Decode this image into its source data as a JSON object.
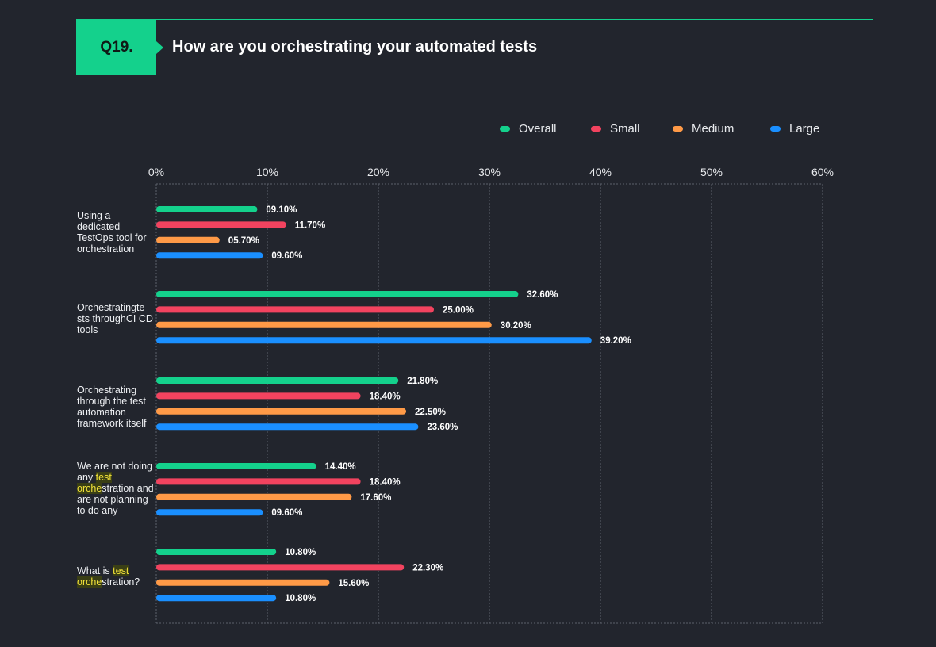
{
  "header": {
    "question_number": "Q19.",
    "title": "How are you orchestrating your automated tests"
  },
  "legend": [
    {
      "name": "Overall",
      "color": "#14d18c"
    },
    {
      "name": "Small",
      "color": "#f2435f"
    },
    {
      "name": "Medium",
      "color": "#ff9a47"
    },
    {
      "name": "Large",
      "color": "#1a8fff"
    }
  ],
  "categories": [
    {
      "parts": [
        {
          "t": "Using a dedicated TestOps tool for orchestration",
          "h": false
        }
      ]
    },
    {
      "parts": [
        {
          "t": "Orchestratingte sts throughCI CD tools",
          "h": false
        }
      ]
    },
    {
      "parts": [
        {
          "t": "Orchestrating through the test automation framework itself",
          "h": false
        }
      ]
    },
    {
      "parts": [
        {
          "t": "We are not doing any ",
          "h": false
        },
        {
          "t": "test orche",
          "h": true
        },
        {
          "t": "stration and are not planning to do any",
          "h": false
        }
      ]
    },
    {
      "parts": [
        {
          "t": "What is ",
          "h": false
        },
        {
          "t": "test orche",
          "h": true
        },
        {
          "t": "stration?",
          "h": false
        }
      ]
    }
  ],
  "chart_data": {
    "type": "bar",
    "orientation": "horizontal",
    "title": "How are you orchestrating your automated tests",
    "categories": [
      "Using a dedicated TestOps tool for orchestration",
      "Orchestratingte sts throughCI CD tools",
      "Orchestrating through the test automation framework itself",
      "We are not doing any test orchestration and are not planning to do any",
      "What is test orchestration?"
    ],
    "series": [
      {
        "name": "Overall",
        "color": "#14d18c",
        "values": [
          9.1,
          32.6,
          21.8,
          14.4,
          10.8
        ],
        "labels": [
          "09.10%",
          "32.60%",
          "21.80%",
          "14.40%",
          "10.80%"
        ]
      },
      {
        "name": "Small",
        "color": "#f2435f",
        "values": [
          11.7,
          25.0,
          18.4,
          18.4,
          22.3
        ],
        "labels": [
          "11.70%",
          "25.00%",
          "18.40%",
          "18.40%",
          "22.30%"
        ]
      },
      {
        "name": "Medium",
        "color": "#ff9a47",
        "values": [
          5.7,
          30.2,
          22.5,
          17.6,
          15.6
        ],
        "labels": [
          "05.70%",
          "30.20%",
          "22.50%",
          "17.60%",
          "15.60%"
        ]
      },
      {
        "name": "Large",
        "color": "#1a8fff",
        "values": [
          9.6,
          39.2,
          23.6,
          9.6,
          10.8
        ],
        "labels": [
          "09.60%",
          "39.20%",
          "23.60%",
          "09.60%",
          "10.80%"
        ]
      }
    ],
    "xlim": [
      0,
      60
    ],
    "xticks": [
      "0%",
      "10%",
      "20%",
      "30%",
      "40%",
      "50%",
      "60%"
    ],
    "xtick_values": [
      0,
      10,
      20,
      30,
      40,
      50,
      60
    ],
    "grid": true,
    "legend_position": "top-right"
  }
}
